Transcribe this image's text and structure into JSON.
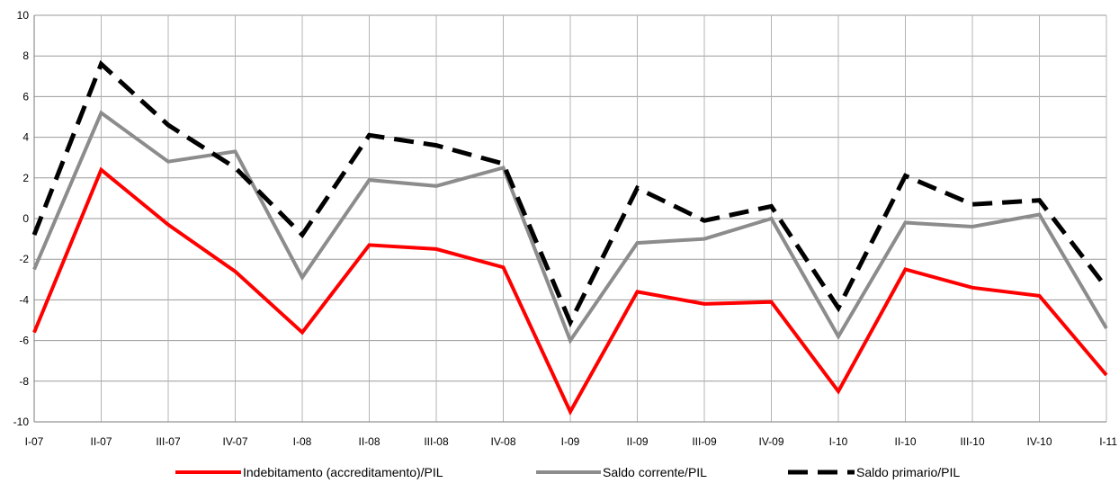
{
  "chart_data": {
    "type": "line",
    "title": "",
    "xlabel": "",
    "ylabel": "",
    "ylim": [
      -10,
      10
    ],
    "yticks": [
      10,
      8,
      6,
      4,
      2,
      0,
      -2,
      -4,
      -6,
      -8,
      -10
    ],
    "grid": true,
    "legend_position": "bottom",
    "categories": [
      "I-07",
      "II-07",
      "III-07",
      "IV-07",
      "I-08",
      "II-08",
      "III-08",
      "IV-08",
      "I-09",
      "II-09",
      "III-09",
      "IV-09",
      "I-10",
      "II-10",
      "III-10",
      "IV-10",
      "I-11"
    ],
    "series": [
      {
        "name": "Indebitamento (accreditamento)/PIL",
        "color": "#ff0000",
        "style": "solid",
        "values": [
          -5.6,
          2.4,
          -0.3,
          -2.6,
          -5.6,
          -1.3,
          -1.5,
          -2.4,
          -9.5,
          -3.6,
          -4.2,
          -4.1,
          -8.5,
          -2.5,
          -3.4,
          -3.8,
          -7.7
        ]
      },
      {
        "name": "Saldo corrente/PIL",
        "color": "#8c8c8c",
        "style": "solid",
        "values": [
          -2.5,
          5.2,
          2.8,
          3.3,
          -2.9,
          1.9,
          1.6,
          2.5,
          -6.0,
          -1.2,
          -1.0,
          0.0,
          -5.8,
          -0.2,
          -0.4,
          0.2,
          -5.4
        ]
      },
      {
        "name": "Saldo primario/PIL",
        "color": "#000000",
        "style": "dashed",
        "values": [
          -0.8,
          7.6,
          4.6,
          2.5,
          -0.8,
          4.1,
          3.6,
          2.7,
          -5.1,
          1.5,
          -0.1,
          0.6,
          -4.4,
          2.1,
          0.7,
          0.9,
          -3.4
        ]
      }
    ]
  }
}
